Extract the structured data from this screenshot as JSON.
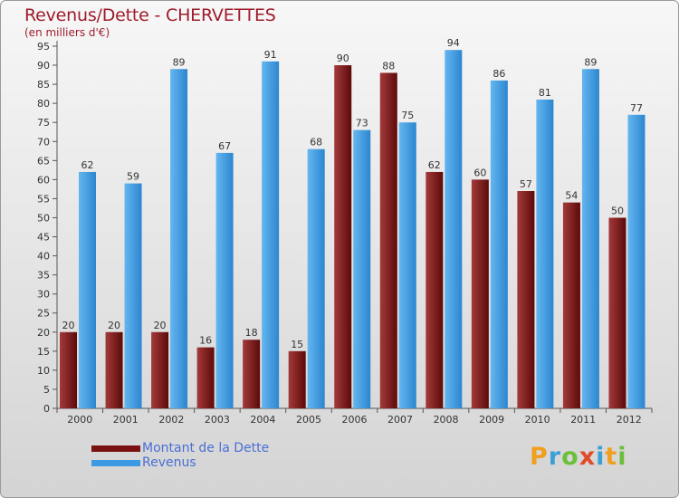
{
  "chart_data": {
    "type": "bar",
    "title": "Revenus/Dette - CHERVETTES",
    "subtitle": "(en milliers d'€)",
    "categories": [
      "2000",
      "2001",
      "2002",
      "2003",
      "2004",
      "2005",
      "2006",
      "2007",
      "2008",
      "2009",
      "2010",
      "2011",
      "2012"
    ],
    "series": [
      {
        "name": "Montant de la Dette",
        "values": [
          20,
          20,
          20,
          16,
          18,
          15,
          90,
          88,
          62,
          60,
          57,
          54,
          50
        ],
        "color": "#7a1111"
      },
      {
        "name": "Revenus",
        "values": [
          62,
          59,
          89,
          67,
          91,
          68,
          73,
          75,
          94,
          86,
          81,
          89,
          77
        ],
        "color": "#3d9ae2"
      }
    ],
    "ylim": [
      0,
      95
    ],
    "yticks": [
      0,
      5,
      10,
      15,
      20,
      25,
      30,
      35,
      40,
      45,
      50,
      55,
      60,
      65,
      70,
      75,
      80,
      85,
      90,
      95
    ],
    "grid": false,
    "legend_position": "bottom-left"
  },
  "logo": {
    "letters": [
      "P",
      "r",
      "o",
      "x",
      "i",
      "t",
      "i"
    ]
  }
}
